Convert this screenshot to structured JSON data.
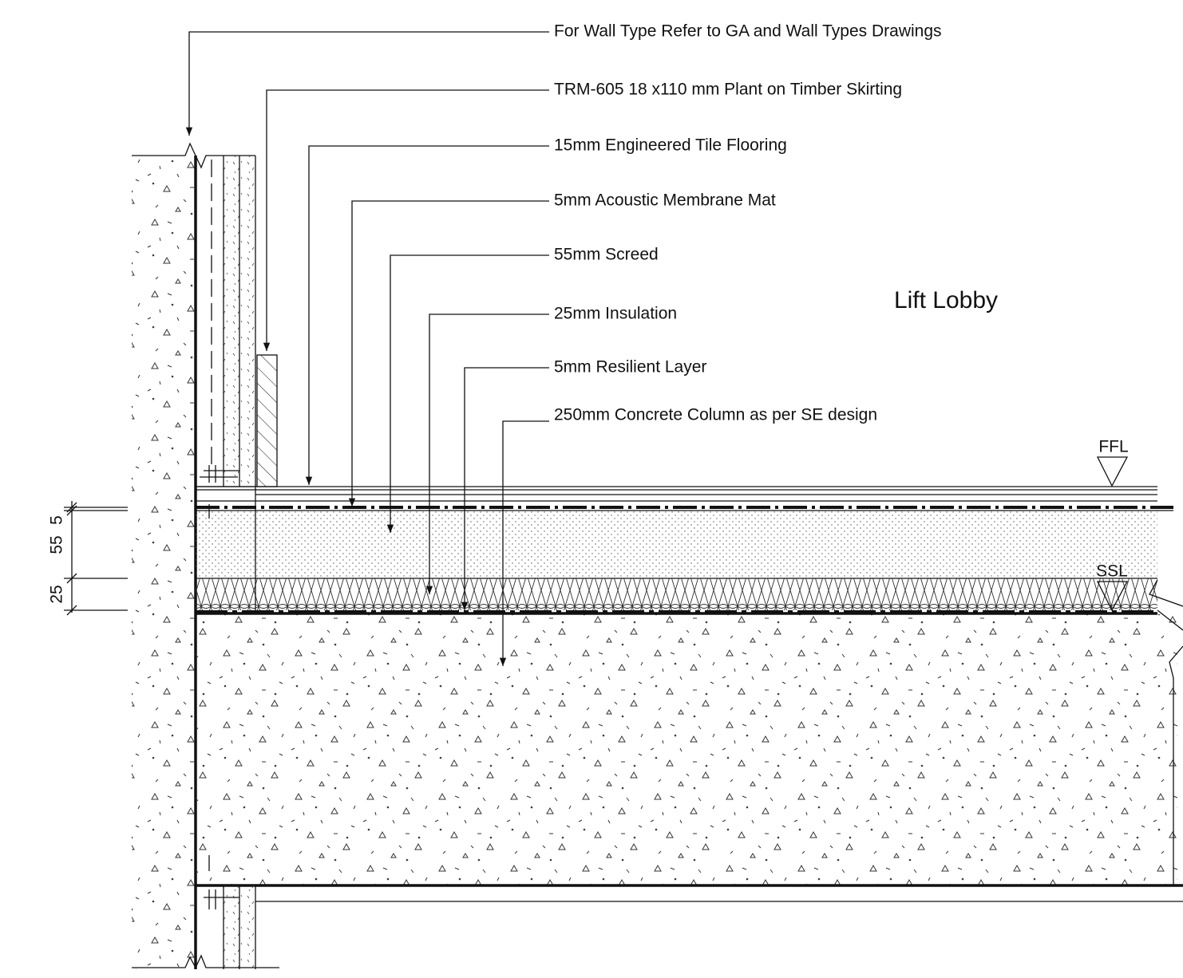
{
  "notes": [
    "For Wall Type Refer to GA and Wall Types Drawings",
    "TRM-605 18 x110 mm Plant on Timber Skirting",
    "15mm Engineered Tile Flooring",
    "5mm Acoustic Membrane Mat",
    "55mm Screed",
    "25mm Insulation",
    "5mm Resilient Layer",
    "250mm Concrete Column as per SE design"
  ],
  "room": "Lift Lobby",
  "levels": {
    "ffl": "FFL",
    "ssl": "SSL"
  },
  "dimensions": [
    5,
    55,
    25
  ]
}
